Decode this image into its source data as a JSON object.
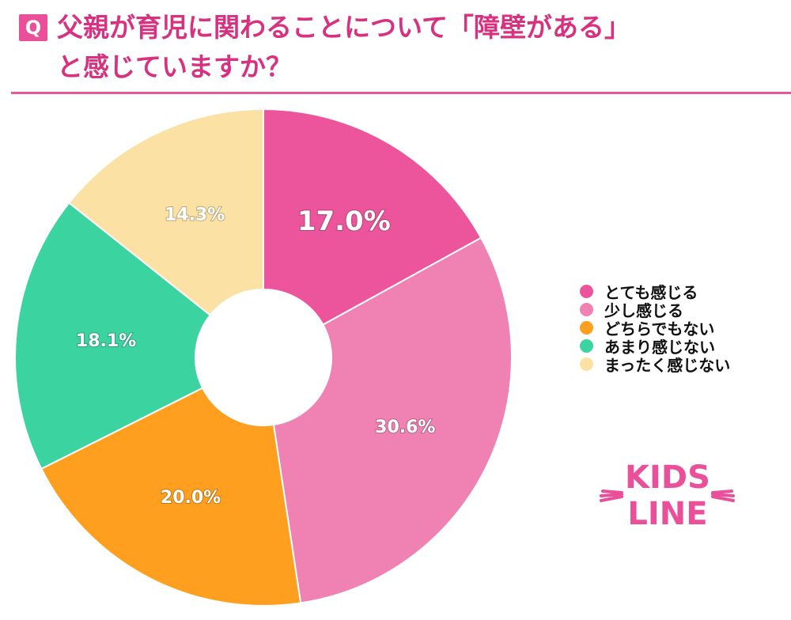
{
  "badge": "Q",
  "title": {
    "line1": "父親が育児に関わることについて「障壁がある」",
    "line2": "と感じていますか？"
  },
  "colors": {
    "accent": "#ea4f9a",
    "title": "#d8317f"
  },
  "chart_data": {
    "type": "pie",
    "donut": true,
    "labels": [
      "とても感じる",
      "少し感じる",
      "どちらでもない",
      "あまり感じない",
      "まったく感じない"
    ],
    "values": [
      17.0,
      30.6,
      20.0,
      18.1,
      14.3
    ],
    "display": [
      "17.0%",
      "30.6%",
      "20.0%",
      "18.1%",
      "14.3%"
    ],
    "colors": [
      "#ec559c",
      "#f082b3",
      "#ff9f1f",
      "#3bd3a0",
      "#fce1a4"
    ],
    "start": "12 o'clock",
    "direction": "clockwise",
    "legend_position": "right"
  },
  "logo": {
    "text_top": "KIDS",
    "text_bottom": "LINE"
  }
}
